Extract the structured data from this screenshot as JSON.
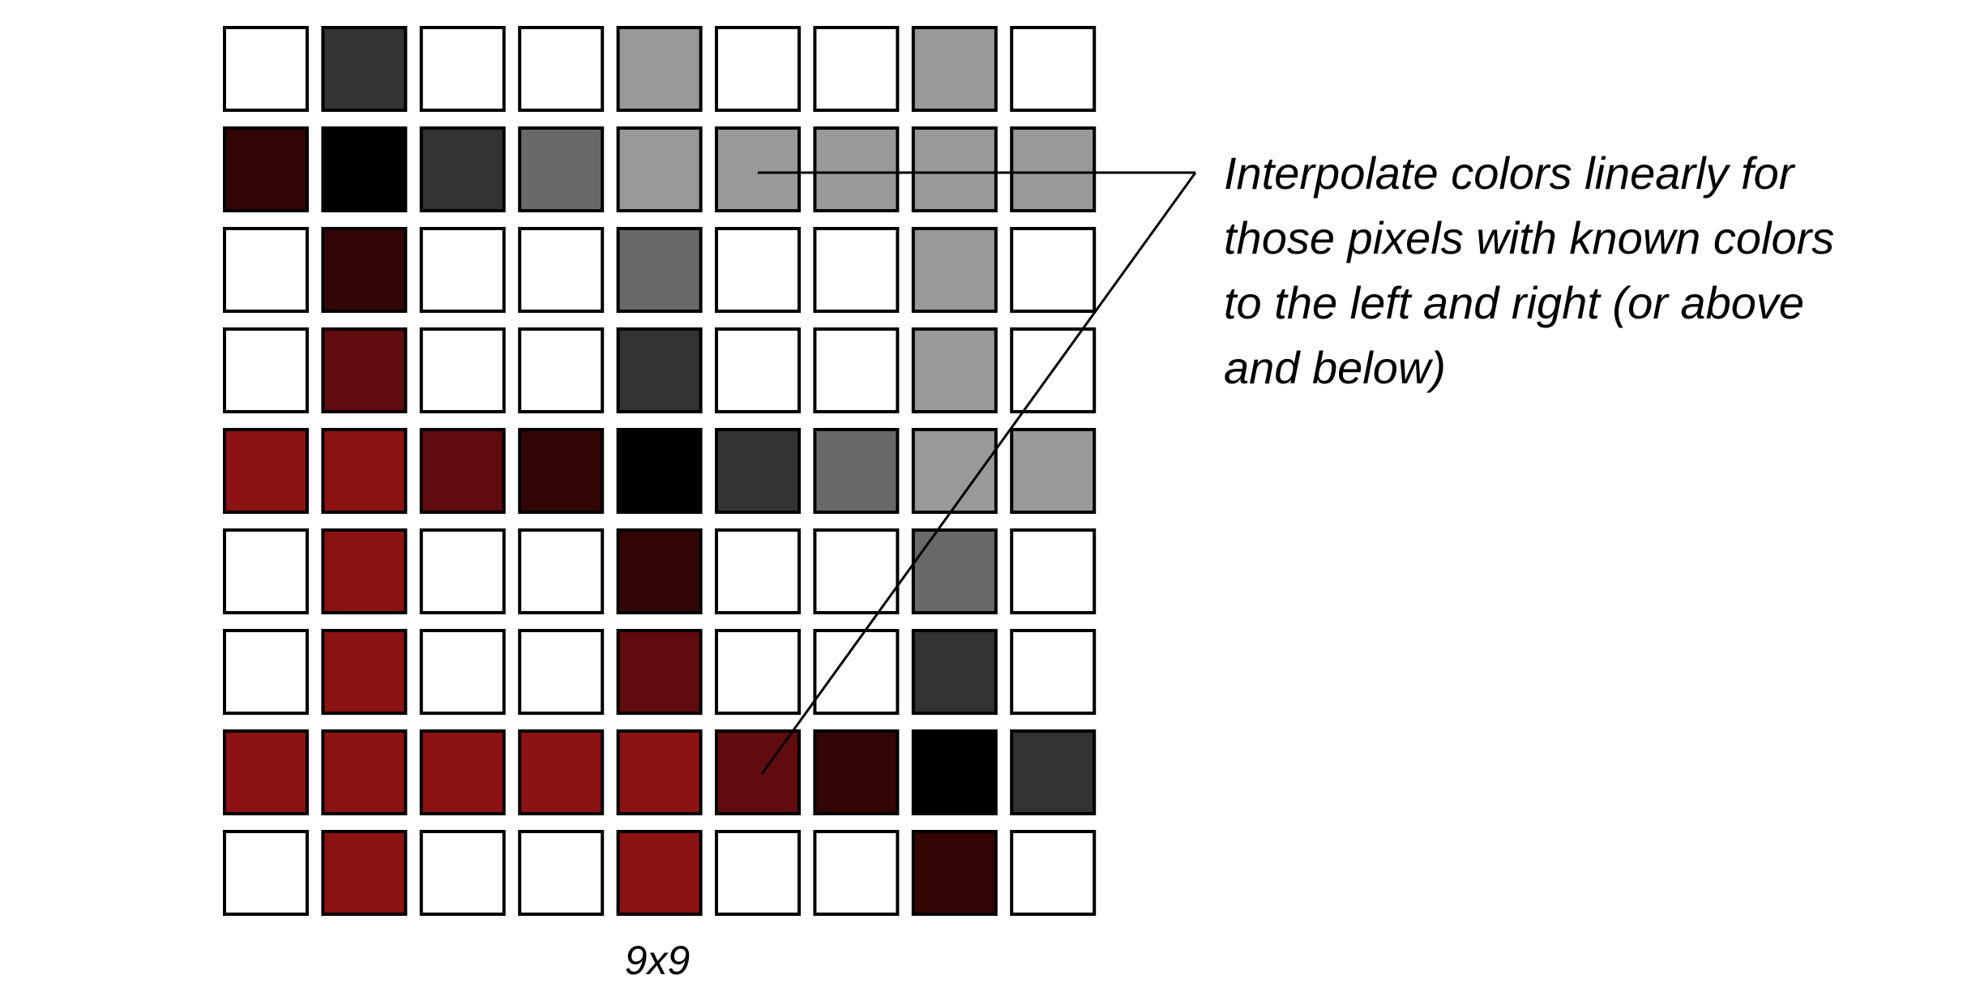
{
  "grid": {
    "caption": "9x9",
    "rows": 9,
    "cols": 9,
    "palette": {
      "W": "#ffffff",
      "G1": "#999999",
      "G2": "#696969",
      "G3": "#333333",
      "K": "#000000",
      "R1": "#330606",
      "R2": "#600b0e",
      "R3": "#8c1313"
    },
    "cells": [
      [
        "W",
        "G3",
        "W",
        "W",
        "G1",
        "W",
        "W",
        "G1",
        "W"
      ],
      [
        "R1",
        "K",
        "G3",
        "G2",
        "G1",
        "G1",
        "G1",
        "G1",
        "G1"
      ],
      [
        "W",
        "R1",
        "W",
        "W",
        "G2",
        "W",
        "W",
        "G1",
        "W"
      ],
      [
        "W",
        "R2",
        "W",
        "W",
        "G3",
        "W",
        "W",
        "G1",
        "W"
      ],
      [
        "R3",
        "R3",
        "R2",
        "R1",
        "K",
        "G3",
        "G2",
        "G1",
        "G1"
      ],
      [
        "W",
        "R3",
        "W",
        "W",
        "R1",
        "W",
        "W",
        "G2",
        "W"
      ],
      [
        "W",
        "R3",
        "W",
        "W",
        "R2",
        "W",
        "W",
        "G3",
        "W"
      ],
      [
        "R3",
        "R3",
        "R3",
        "R3",
        "R3",
        "R2",
        "R1",
        "K",
        "G3"
      ],
      [
        "W",
        "R3",
        "W",
        "W",
        "R3",
        "W",
        "W",
        "R1",
        "W"
      ]
    ]
  },
  "annotation": {
    "lines": [
      "Interpolate colors linearly for",
      "those pixels with known colors",
      "to the left and right (or above",
      "and below)"
    ]
  }
}
